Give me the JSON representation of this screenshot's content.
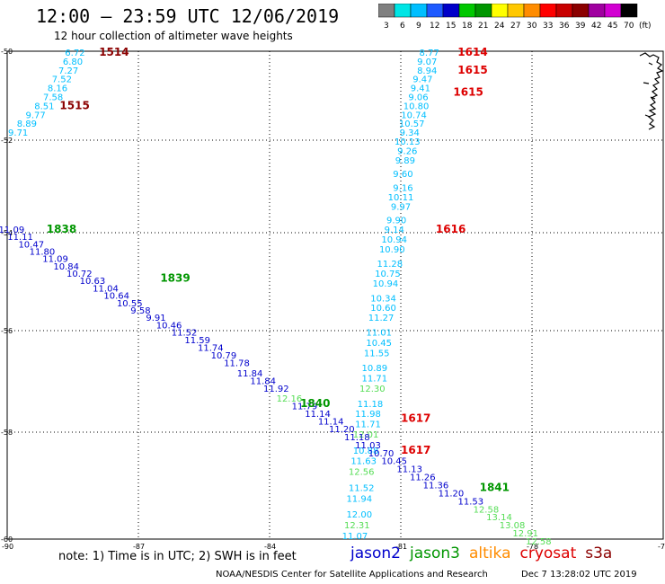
{
  "header": {
    "title": "12:00 — 23:59 UTC 12/06/2019",
    "subtitle": "12 hour collection of altimeter wave heights"
  },
  "legend": {
    "unit": "(ft)",
    "bins": [
      {
        "label": "3",
        "color": "#808080"
      },
      {
        "label": "6",
        "color": "#00e5e5"
      },
      {
        "label": "9",
        "color": "#00bfff"
      },
      {
        "label": "12",
        "color": "#1e5aff"
      },
      {
        "label": "15",
        "color": "#0000c8"
      },
      {
        "label": "18",
        "color": "#00c800"
      },
      {
        "label": "21",
        "color": "#009600"
      },
      {
        "label": "24",
        "color": "#ffff00"
      },
      {
        "label": "27",
        "color": "#ffc800"
      },
      {
        "label": "30",
        "color": "#ff8c00"
      },
      {
        "label": "33",
        "color": "#ff0000"
      },
      {
        "label": "36",
        "color": "#c80000"
      },
      {
        "label": "39",
        "color": "#8b0000"
      },
      {
        "label": "42",
        "color": "#a000a0"
      },
      {
        "label": "45",
        "color": "#d200d2"
      },
      {
        "label": "70",
        "color": "#000000"
      }
    ]
  },
  "axes": {
    "lon_ticks": [
      "-90",
      "-87",
      "-84",
      "-81",
      "-78",
      "-75"
    ],
    "lat_ticks": [
      "-50",
      "-52",
      "-54",
      "-56",
      "-58",
      "-60"
    ]
  },
  "note": "note:  1) Time is in UTC; 2) SWH is in feet",
  "satellites": [
    {
      "name": "jason2",
      "color": "#0000cc"
    },
    {
      "name": "jason3",
      "color": "#009600"
    },
    {
      "name": "altika",
      "color": "#ff8c00"
    },
    {
      "name": "cryosat",
      "color": "#dd0000"
    },
    {
      "name": "s3a",
      "color": "#8b0000"
    }
  ],
  "footer": {
    "credit": "NOAA/NESDIS Center for Satellite Applications and Research",
    "timestamp": "Dec  7 13:28:02 UTC 2019"
  },
  "map_labels": {
    "time_labels": [
      {
        "text": "1514",
        "lon": -87.9,
        "lat": -50.1,
        "color": "#8b0000"
      },
      {
        "text": "1515",
        "lon": -88.8,
        "lat": -51.3,
        "color": "#8b0000"
      },
      {
        "text": "1838",
        "lon": -89.1,
        "lat": -54.0,
        "color": "#009600"
      },
      {
        "text": "1839",
        "lon": -86.5,
        "lat": -55.0,
        "color": "#009600"
      },
      {
        "text": "1840",
        "lon": -83.3,
        "lat": -57.5,
        "color": "#009600"
      },
      {
        "text": "1841",
        "lon": -79.2,
        "lat": -59.1,
        "color": "#009600"
      },
      {
        "text": "1614",
        "lon": -79.7,
        "lat": -50.1,
        "color": "#dd0000"
      },
      {
        "text": "1615",
        "lon": -79.7,
        "lat": -50.5,
        "color": "#dd0000"
      },
      {
        "text": "1615",
        "lon": -79.8,
        "lat": -51.0,
        "color": "#dd0000"
      },
      {
        "text": "1616",
        "lon": -80.2,
        "lat": -54.0,
        "color": "#dd0000"
      },
      {
        "text": "1617",
        "lon": -81.0,
        "lat": -57.8,
        "color": "#dd0000"
      },
      {
        "text": "1617",
        "lon": -81.0,
        "lat": -58.4,
        "color": "#dd0000"
      }
    ]
  },
  "tracks": [
    {
      "name": "s3a-track",
      "color": "#00bfff",
      "points": [
        {
          "lon": -88.45,
          "lat": -50.1,
          "v": "6.72"
        },
        {
          "lon": -88.5,
          "lat": -50.3,
          "v": "6.80"
        },
        {
          "lon": -88.6,
          "lat": -50.5,
          "v": "7.27"
        },
        {
          "lon": -88.75,
          "lat": -50.7,
          "v": "7.52"
        },
        {
          "lon": -88.85,
          "lat": -50.9,
          "v": "8.16"
        },
        {
          "lon": -88.95,
          "lat": -51.1,
          "v": "7.58"
        },
        {
          "lon": -89.15,
          "lat": -51.3,
          "v": "8.51"
        },
        {
          "lon": -89.35,
          "lat": -51.5,
          "v": "9.77"
        },
        {
          "lon": -89.55,
          "lat": -51.7,
          "v": "8.89"
        },
        {
          "lon": -89.75,
          "lat": -51.9,
          "v": "9.71"
        }
      ]
    },
    {
      "name": "cryosat-track",
      "color": "#00bfff",
      "points": [
        {
          "lon": -80.35,
          "lat": -50.1,
          "v": "8.77"
        },
        {
          "lon": -80.4,
          "lat": -50.3,
          "v": "9.07"
        },
        {
          "lon": -80.4,
          "lat": -50.5,
          "v": "8.94"
        },
        {
          "lon": -80.5,
          "lat": -50.7,
          "v": "9.47"
        },
        {
          "lon": -80.55,
          "lat": -50.9,
          "v": "9.41"
        },
        {
          "lon": -80.6,
          "lat": -51.1,
          "v": "9.06"
        },
        {
          "lon": -80.65,
          "lat": -51.3,
          "v": "10.80"
        },
        {
          "lon": -80.7,
          "lat": -51.5,
          "v": "10.74"
        },
        {
          "lon": -80.75,
          "lat": -51.7,
          "v": "10.57"
        },
        {
          "lon": -80.8,
          "lat": -51.9,
          "v": "9.34"
        },
        {
          "lon": -80.85,
          "lat": -52.1,
          "v": "10.13"
        },
        {
          "lon": -80.85,
          "lat": -52.3,
          "v": "9.26"
        },
        {
          "lon": -80.9,
          "lat": -52.5,
          "v": "9.89"
        },
        {
          "lon": -80.95,
          "lat": -52.8,
          "v": "9.60"
        },
        {
          "lon": -80.95,
          "lat": -53.1,
          "v": "9.16"
        },
        {
          "lon": -81.0,
          "lat": -53.3,
          "v": "10.11"
        },
        {
          "lon": -81.0,
          "lat": -53.5,
          "v": "9.97"
        },
        {
          "lon": -81.1,
          "lat": -53.8,
          "v": "9.90"
        },
        {
          "lon": -81.15,
          "lat": -54.0,
          "v": "9.14"
        },
        {
          "lon": -81.15,
          "lat": -54.2,
          "v": "10.94"
        },
        {
          "lon": -81.2,
          "lat": -54.4,
          "v": "10.90"
        },
        {
          "lon": -81.25,
          "lat": -54.7,
          "v": "11.28"
        },
        {
          "lon": -81.3,
          "lat": -54.9,
          "v": "10.75"
        },
        {
          "lon": -81.35,
          "lat": -55.1,
          "v": "10.94"
        },
        {
          "lon": -81.4,
          "lat": -55.4,
          "v": "10.34"
        },
        {
          "lon": -81.4,
          "lat": -55.6,
          "v": "10.60"
        },
        {
          "lon": -81.45,
          "lat": -55.8,
          "v": "11.27"
        },
        {
          "lon": -81.5,
          "lat": -56.1,
          "v": "11.01"
        },
        {
          "lon": -81.5,
          "lat": -56.3,
          "v": "10.45"
        },
        {
          "lon": -81.55,
          "lat": -56.5,
          "v": "11.55"
        },
        {
          "lon": -81.6,
          "lat": -56.8,
          "v": "10.89"
        },
        {
          "lon": -81.6,
          "lat": -57.0,
          "v": "11.71"
        },
        {
          "lon": -81.65,
          "lat": -57.2,
          "v": "12.30",
          "c": "#55dd55"
        },
        {
          "lon": -81.7,
          "lat": -57.5,
          "v": "11.18"
        },
        {
          "lon": -81.75,
          "lat": -57.7,
          "v": "11.98"
        },
        {
          "lon": -81.75,
          "lat": -57.9,
          "v": "11.71"
        },
        {
          "lon": -81.8,
          "lat": -58.1,
          "v": "12.01",
          "c": "#55dd55"
        },
        {
          "lon": -81.8,
          "lat": -58.4,
          "v": "10.88"
        },
        {
          "lon": -81.85,
          "lat": -58.6,
          "v": "11.63"
        },
        {
          "lon": -81.9,
          "lat": -58.8,
          "v": "12.56",
          "c": "#55dd55"
        },
        {
          "lon": -81.9,
          "lat": -59.1,
          "v": "11.52"
        },
        {
          "lon": -81.95,
          "lat": -59.3,
          "v": "11.94"
        },
        {
          "lon": -81.95,
          "lat": -59.6,
          "v": "12.00"
        },
        {
          "lon": -82.0,
          "lat": -59.8,
          "v": "12.31",
          "c": "#55dd55"
        },
        {
          "lon": -82.05,
          "lat": -60.0,
          "v": "11.07"
        }
      ]
    },
    {
      "name": "jason3-track",
      "color": "#0000cc",
      "points": [
        {
          "lon": -89.9,
          "lat": -54.0,
          "v": "11.09"
        },
        {
          "lon": -89.7,
          "lat": -54.15,
          "v": "11.11"
        },
        {
          "lon": -89.45,
          "lat": -54.3,
          "v": "10.47"
        },
        {
          "lon": -89.2,
          "lat": -54.45,
          "v": "11.80"
        },
        {
          "lon": -88.9,
          "lat": -54.6,
          "v": "11.09"
        },
        {
          "lon": -88.65,
          "lat": -54.75,
          "v": "10.84"
        },
        {
          "lon": -88.35,
          "lat": -54.9,
          "v": "10.72"
        },
        {
          "lon": -88.05,
          "lat": -55.05,
          "v": "10.63"
        },
        {
          "lon": -87.75,
          "lat": -55.2,
          "v": "11.04"
        },
        {
          "lon": -87.5,
          "lat": -55.35,
          "v": "10.64"
        },
        {
          "lon": -87.2,
          "lat": -55.5,
          "v": "10.55"
        },
        {
          "lon": -86.95,
          "lat": -55.65,
          "v": "9.58"
        },
        {
          "lon": -86.6,
          "lat": -55.8,
          "v": "9.91"
        },
        {
          "lon": -86.3,
          "lat": -55.95,
          "v": "10.46"
        },
        {
          "lon": -85.95,
          "lat": -56.1,
          "v": "11.52"
        },
        {
          "lon": -85.65,
          "lat": -56.25,
          "v": "11.59"
        },
        {
          "lon": -85.35,
          "lat": -56.4,
          "v": "11.74"
        },
        {
          "lon": -85.05,
          "lat": -56.55,
          "v": "10.79"
        },
        {
          "lon": -84.75,
          "lat": -56.7,
          "v": "11.78"
        },
        {
          "lon": -84.45,
          "lat": -56.9,
          "v": "11.84"
        },
        {
          "lon": -84.15,
          "lat": -57.05,
          "v": "11.84"
        },
        {
          "lon": -83.85,
          "lat": -57.2,
          "v": "11.92"
        },
        {
          "lon": -83.55,
          "lat": -57.4,
          "v": "12.16",
          "c": "#55dd55"
        },
        {
          "lon": -83.2,
          "lat": -57.55,
          "v": "11.79"
        },
        {
          "lon": -82.9,
          "lat": -57.7,
          "v": "11.14"
        },
        {
          "lon": -82.6,
          "lat": -57.85,
          "v": "11.14"
        },
        {
          "lon": -82.35,
          "lat": -58.0,
          "v": "11.20"
        },
        {
          "lon": -82.0,
          "lat": -58.15,
          "v": "11.18"
        },
        {
          "lon": -81.75,
          "lat": -58.3,
          "v": "11.03"
        },
        {
          "lon": -81.45,
          "lat": -58.45,
          "v": "10.70"
        },
        {
          "lon": -81.15,
          "lat": -58.6,
          "v": "10.45"
        },
        {
          "lon": -80.8,
          "lat": -58.75,
          "v": "11.13"
        },
        {
          "lon": -80.5,
          "lat": -58.9,
          "v": "11.26"
        },
        {
          "lon": -80.2,
          "lat": -59.05,
          "v": "11.36"
        },
        {
          "lon": -79.85,
          "lat": -59.2,
          "v": "11.20"
        },
        {
          "lon": -79.4,
          "lat": -59.35,
          "v": "11.53"
        },
        {
          "lon": -79.05,
          "lat": -59.5,
          "v": "12.58",
          "c": "#55dd55"
        },
        {
          "lon": -78.75,
          "lat": -59.65,
          "v": "13.14",
          "c": "#55dd55"
        },
        {
          "lon": -78.45,
          "lat": -59.8,
          "v": "13.08",
          "c": "#55dd55"
        },
        {
          "lon": -78.15,
          "lat": -59.95,
          "v": "12.91",
          "c": "#55dd55"
        },
        {
          "lon": -77.85,
          "lat": -60.1,
          "v": "12.58",
          "c": "#55dd55"
        }
      ]
    }
  ]
}
